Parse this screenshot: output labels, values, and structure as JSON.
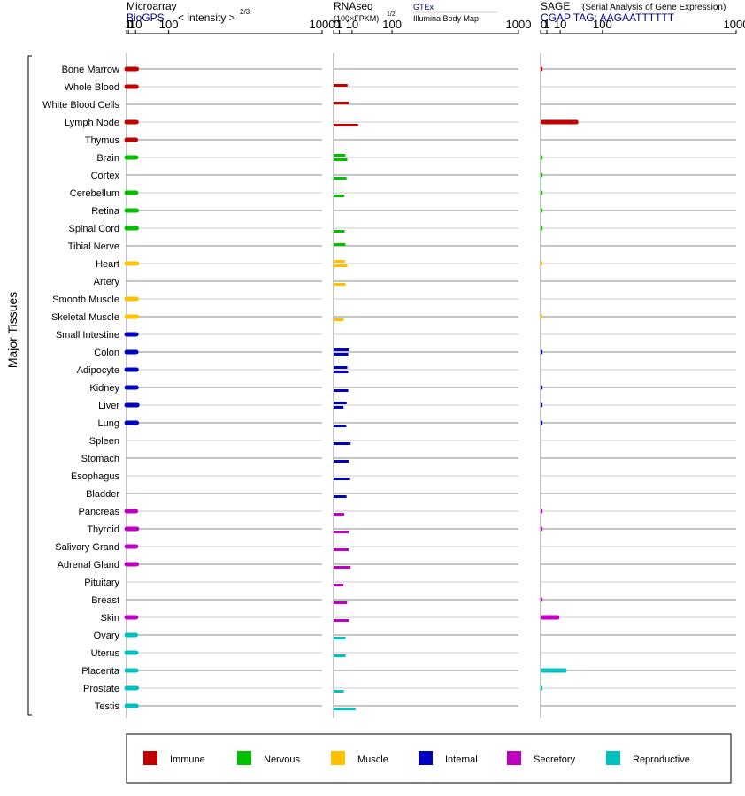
{
  "headers": {
    "microarray": {
      "title": "Microarray",
      "source": "BioGPS",
      "scale": "< intensity >",
      "exponent": "2/3"
    },
    "rnaseq": {
      "title": "RNAseq",
      "unit": "(100×FPKM)",
      "exponent": "1/2",
      "source1": "GTEx",
      "source2": "Illumina Body Map"
    },
    "sage": {
      "title": "SAGE",
      "subtitle": "(Serial Analysis of Gene Expression)",
      "tag": "CGAP TAG: AAGAATTTTTT"
    }
  },
  "y_axis_label": "Major Tissues",
  "axis_ticks": [
    "0",
    "1",
    "10",
    "100",
    "1000"
  ],
  "colors": {
    "Immune": "#c00000",
    "Nervous": "#00c000",
    "Muscle": "#ffc000",
    "Internal": "#0000c0",
    "Secretory": "#c000c0",
    "Reproductive": "#00c0c0"
  },
  "legend": [
    "Immune",
    "Nervous",
    "Muscle",
    "Internal",
    "Secretory",
    "Reproductive"
  ],
  "chart_data": {
    "type": "bar",
    "scale": "power: microarray x^(2/3), rnaseq x^(1/2), sage x^(1/2); axis range 0-1000",
    "categories": [
      "Bone Marrow",
      "Whole Blood",
      "White Blood Cells",
      "Lymph Node",
      "Thymus",
      "Brain",
      "Cortex",
      "Cerebellum",
      "Retina",
      "Spinal Cord",
      "Tibial Nerve",
      "Heart",
      "Artery",
      "Smooth Muscle",
      "Skeletal Muscle",
      "Small Intestine",
      "Colon",
      "Adipocyte",
      "Kidney",
      "Liver",
      "Lung",
      "Spleen",
      "Stomach",
      "Esophagus",
      "Bladder",
      "Pancreas",
      "Thyroid",
      "Salivary Grand",
      "Adrenal Gland",
      "Pituitary",
      "Breast",
      "Skin",
      "Ovary",
      "Uterus",
      "Placenta",
      "Prostate",
      "Testis"
    ],
    "groups": [
      "Immune",
      "Immune",
      "Immune",
      "Immune",
      "Immune",
      "Nervous",
      "Nervous",
      "Nervous",
      "Nervous",
      "Nervous",
      "Nervous",
      "Muscle",
      "Muscle",
      "Muscle",
      "Muscle",
      "Internal",
      "Internal",
      "Internal",
      "Internal",
      "Internal",
      "Internal",
      "Internal",
      "Internal",
      "Internal",
      "Internal",
      "Secretory",
      "Secretory",
      "Secretory",
      "Secretory",
      "Secretory",
      "Secretory",
      "Secretory",
      "Reproductive",
      "Reproductive",
      "Reproductive",
      "Reproductive",
      "Reproductive"
    ],
    "series": [
      {
        "name": "Microarray",
        "values": [
          11.9,
          11.5,
          null,
          11.5,
          10.5,
          10.8,
          null,
          10.8,
          11.9,
          11.7,
          null,
          12.3,
          null,
          11.7,
          11.9,
          11.2,
          11.2,
          11.5,
          11.5,
          12.9,
          11.9,
          null,
          null,
          null,
          null,
          10.5,
          12.3,
          10.8,
          11.9,
          null,
          null,
          10.8,
          10.2,
          10.8,
          11.2,
          11.9,
          11.5
        ]
      },
      {
        "name": "GTEx",
        "values": [
          null,
          5.7,
          6.7,
          null,
          null,
          4.1,
          null,
          null,
          null,
          null,
          4.1,
          3.8,
          null,
          null,
          null,
          null,
          7.0,
          5.5,
          null,
          5.0,
          null,
          null,
          null,
          null,
          null,
          null,
          null,
          null,
          null,
          null,
          null,
          null,
          null,
          null,
          null,
          null,
          null
        ]
      },
      {
        "name": "Illumina Body Map",
        "values": [
          null,
          null,
          null,
          17.7,
          null,
          5.5,
          4.9,
          3.4,
          null,
          3.6,
          null,
          5.5,
          4.2,
          null,
          3.0,
          null,
          6.3,
          6.3,
          6.3,
          2.9,
          4.7,
          8.5,
          6.7,
          8.0,
          4.9,
          3.3,
          6.7,
          6.7,
          8.5,
          2.9,
          5.3,
          7.0,
          4.2,
          4.2,
          null,
          3.1,
          14.1
        ]
      },
      {
        "name": "SAGE",
        "values": [
          0.1,
          null,
          null,
          37.1,
          null,
          0.1,
          0.1,
          0.1,
          0.1,
          0.1,
          null,
          0.1,
          null,
          null,
          0.1,
          null,
          0.1,
          null,
          0.1,
          0.1,
          0.1,
          null,
          null,
          null,
          null,
          0.1,
          0.1,
          null,
          null,
          null,
          0.1,
          9.2,
          null,
          null,
          17.7,
          0.1,
          null
        ]
      }
    ],
    "rnaseq_split": {
      "Whole Blood": [
        "gtex"
      ],
      "White Blood Cells": [
        "gtex"
      ],
      "Lymph Node": [
        "ibm"
      ],
      "Brain": [
        "gtex",
        "ibm"
      ]
    },
    "xlim": [
      0,
      1000
    ]
  }
}
